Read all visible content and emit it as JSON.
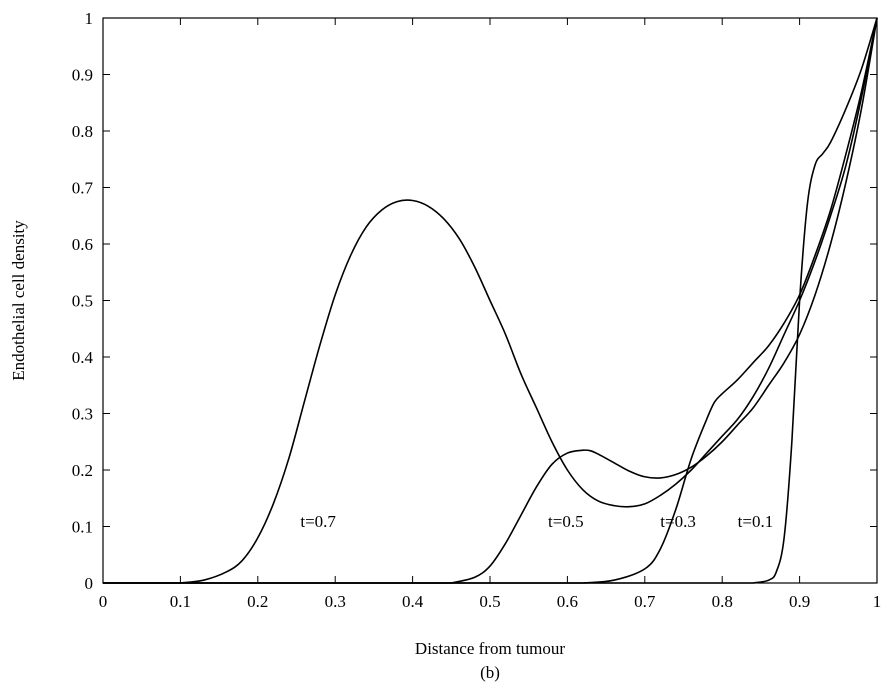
{
  "chart_data": {
    "type": "line",
    "title": "",
    "subtitle": "(b)",
    "xlabel": "Distance from tumour",
    "ylabel": "Endothelial cell density",
    "xlim": [
      0,
      1
    ],
    "ylim": [
      0,
      1
    ],
    "x_ticks": [
      "0",
      "0.1",
      "0.2",
      "0.3",
      "0.4",
      "0.5",
      "0.6",
      "0.7",
      "0.8",
      "0.9",
      "1"
    ],
    "y_ticks": [
      "0",
      "0.1",
      "0.2",
      "0.3",
      "0.4",
      "0.5",
      "0.6",
      "0.7",
      "0.8",
      "0.9",
      "1"
    ],
    "grid": false,
    "series": [
      {
        "name": "t=0.1",
        "label_at": [
          0.82,
          0.11
        ],
        "x": [
          0.84,
          0.86,
          0.87,
          0.88,
          0.89,
          0.9,
          0.91,
          0.92,
          0.93,
          0.94,
          0.96,
          0.98,
          1.0
        ],
        "y": [
          0.0,
          0.005,
          0.02,
          0.08,
          0.25,
          0.5,
          0.67,
          0.74,
          0.76,
          0.78,
          0.84,
          0.91,
          1.0
        ]
      },
      {
        "name": "t=0.3",
        "label_at": [
          0.72,
          0.11
        ],
        "x": [
          0.62,
          0.66,
          0.7,
          0.72,
          0.74,
          0.76,
          0.78,
          0.79,
          0.8,
          0.82,
          0.84,
          0.86,
          0.88,
          0.9,
          0.92,
          0.94,
          0.96,
          0.98,
          1.0
        ],
        "y": [
          0.0,
          0.005,
          0.025,
          0.06,
          0.13,
          0.22,
          0.29,
          0.32,
          0.335,
          0.36,
          0.39,
          0.42,
          0.46,
          0.51,
          0.58,
          0.66,
          0.76,
          0.87,
          1.0
        ]
      },
      {
        "name": "t=0.5",
        "label_at": [
          0.575,
          0.11
        ],
        "x": [
          0.45,
          0.48,
          0.5,
          0.52,
          0.54,
          0.56,
          0.58,
          0.6,
          0.62,
          0.63,
          0.64,
          0.66,
          0.68,
          0.7,
          0.72,
          0.74,
          0.76,
          0.78,
          0.8,
          0.82,
          0.84,
          0.86,
          0.88,
          0.9,
          0.92,
          0.94,
          0.96,
          0.98,
          1.0
        ],
        "y": [
          0.0,
          0.01,
          0.03,
          0.07,
          0.12,
          0.17,
          0.21,
          0.23,
          0.235,
          0.234,
          0.228,
          0.213,
          0.198,
          0.188,
          0.186,
          0.192,
          0.205,
          0.225,
          0.25,
          0.28,
          0.31,
          0.35,
          0.39,
          0.44,
          0.51,
          0.6,
          0.71,
          0.84,
          1.0
        ]
      },
      {
        "name": "t=0.7",
        "label_at": [
          0.255,
          0.11
        ],
        "x": [
          0.1,
          0.13,
          0.16,
          0.18,
          0.2,
          0.22,
          0.24,
          0.26,
          0.28,
          0.3,
          0.32,
          0.34,
          0.36,
          0.38,
          0.4,
          0.42,
          0.44,
          0.46,
          0.48,
          0.5,
          0.52,
          0.54,
          0.56,
          0.58,
          0.6,
          0.62,
          0.64,
          0.66,
          0.68,
          0.7,
          0.72,
          0.74,
          0.76,
          0.78,
          0.8,
          0.82,
          0.84,
          0.86,
          0.88,
          0.9,
          0.92,
          0.94,
          0.96,
          0.98,
          1.0
        ],
        "y": [
          0.0,
          0.005,
          0.02,
          0.04,
          0.08,
          0.14,
          0.22,
          0.32,
          0.42,
          0.51,
          0.58,
          0.63,
          0.66,
          0.675,
          0.677,
          0.667,
          0.645,
          0.61,
          0.56,
          0.5,
          0.44,
          0.37,
          0.31,
          0.25,
          0.2,
          0.165,
          0.145,
          0.137,
          0.135,
          0.14,
          0.155,
          0.175,
          0.2,
          0.23,
          0.26,
          0.29,
          0.33,
          0.38,
          0.44,
          0.5,
          0.57,
          0.65,
          0.74,
          0.86,
          1.0
        ]
      }
    ]
  }
}
